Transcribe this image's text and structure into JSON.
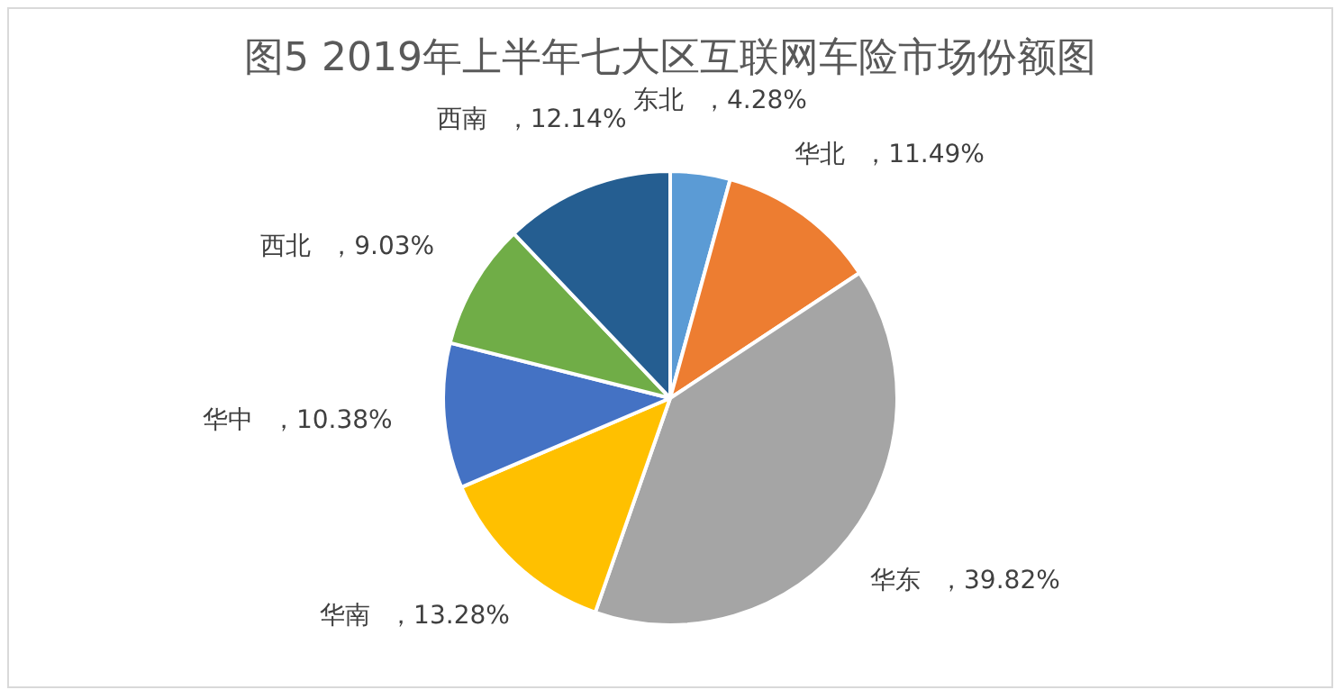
{
  "chart_data": {
    "type": "pie",
    "title": "图5 2019年上半年七大区互联网车险市场份额图",
    "categories": [
      "东北",
      "华北",
      "华东",
      "华南",
      "华中",
      "西北",
      "西南"
    ],
    "values": [
      4.28,
      11.49,
      39.82,
      13.28,
      10.38,
      9.03,
      12.14
    ],
    "value_labels": [
      "，4.28%",
      "，11.49%",
      "，39.82%",
      "，13.28%",
      "，10.38%",
      "，9.03%",
      "，12.14%"
    ],
    "colors": [
      "#5b9bd5",
      "#ed7d31",
      "#a5a5a5",
      "#ffc000",
      "#4472c4",
      "#70ad47",
      "#255e91"
    ],
    "legend": false
  }
}
